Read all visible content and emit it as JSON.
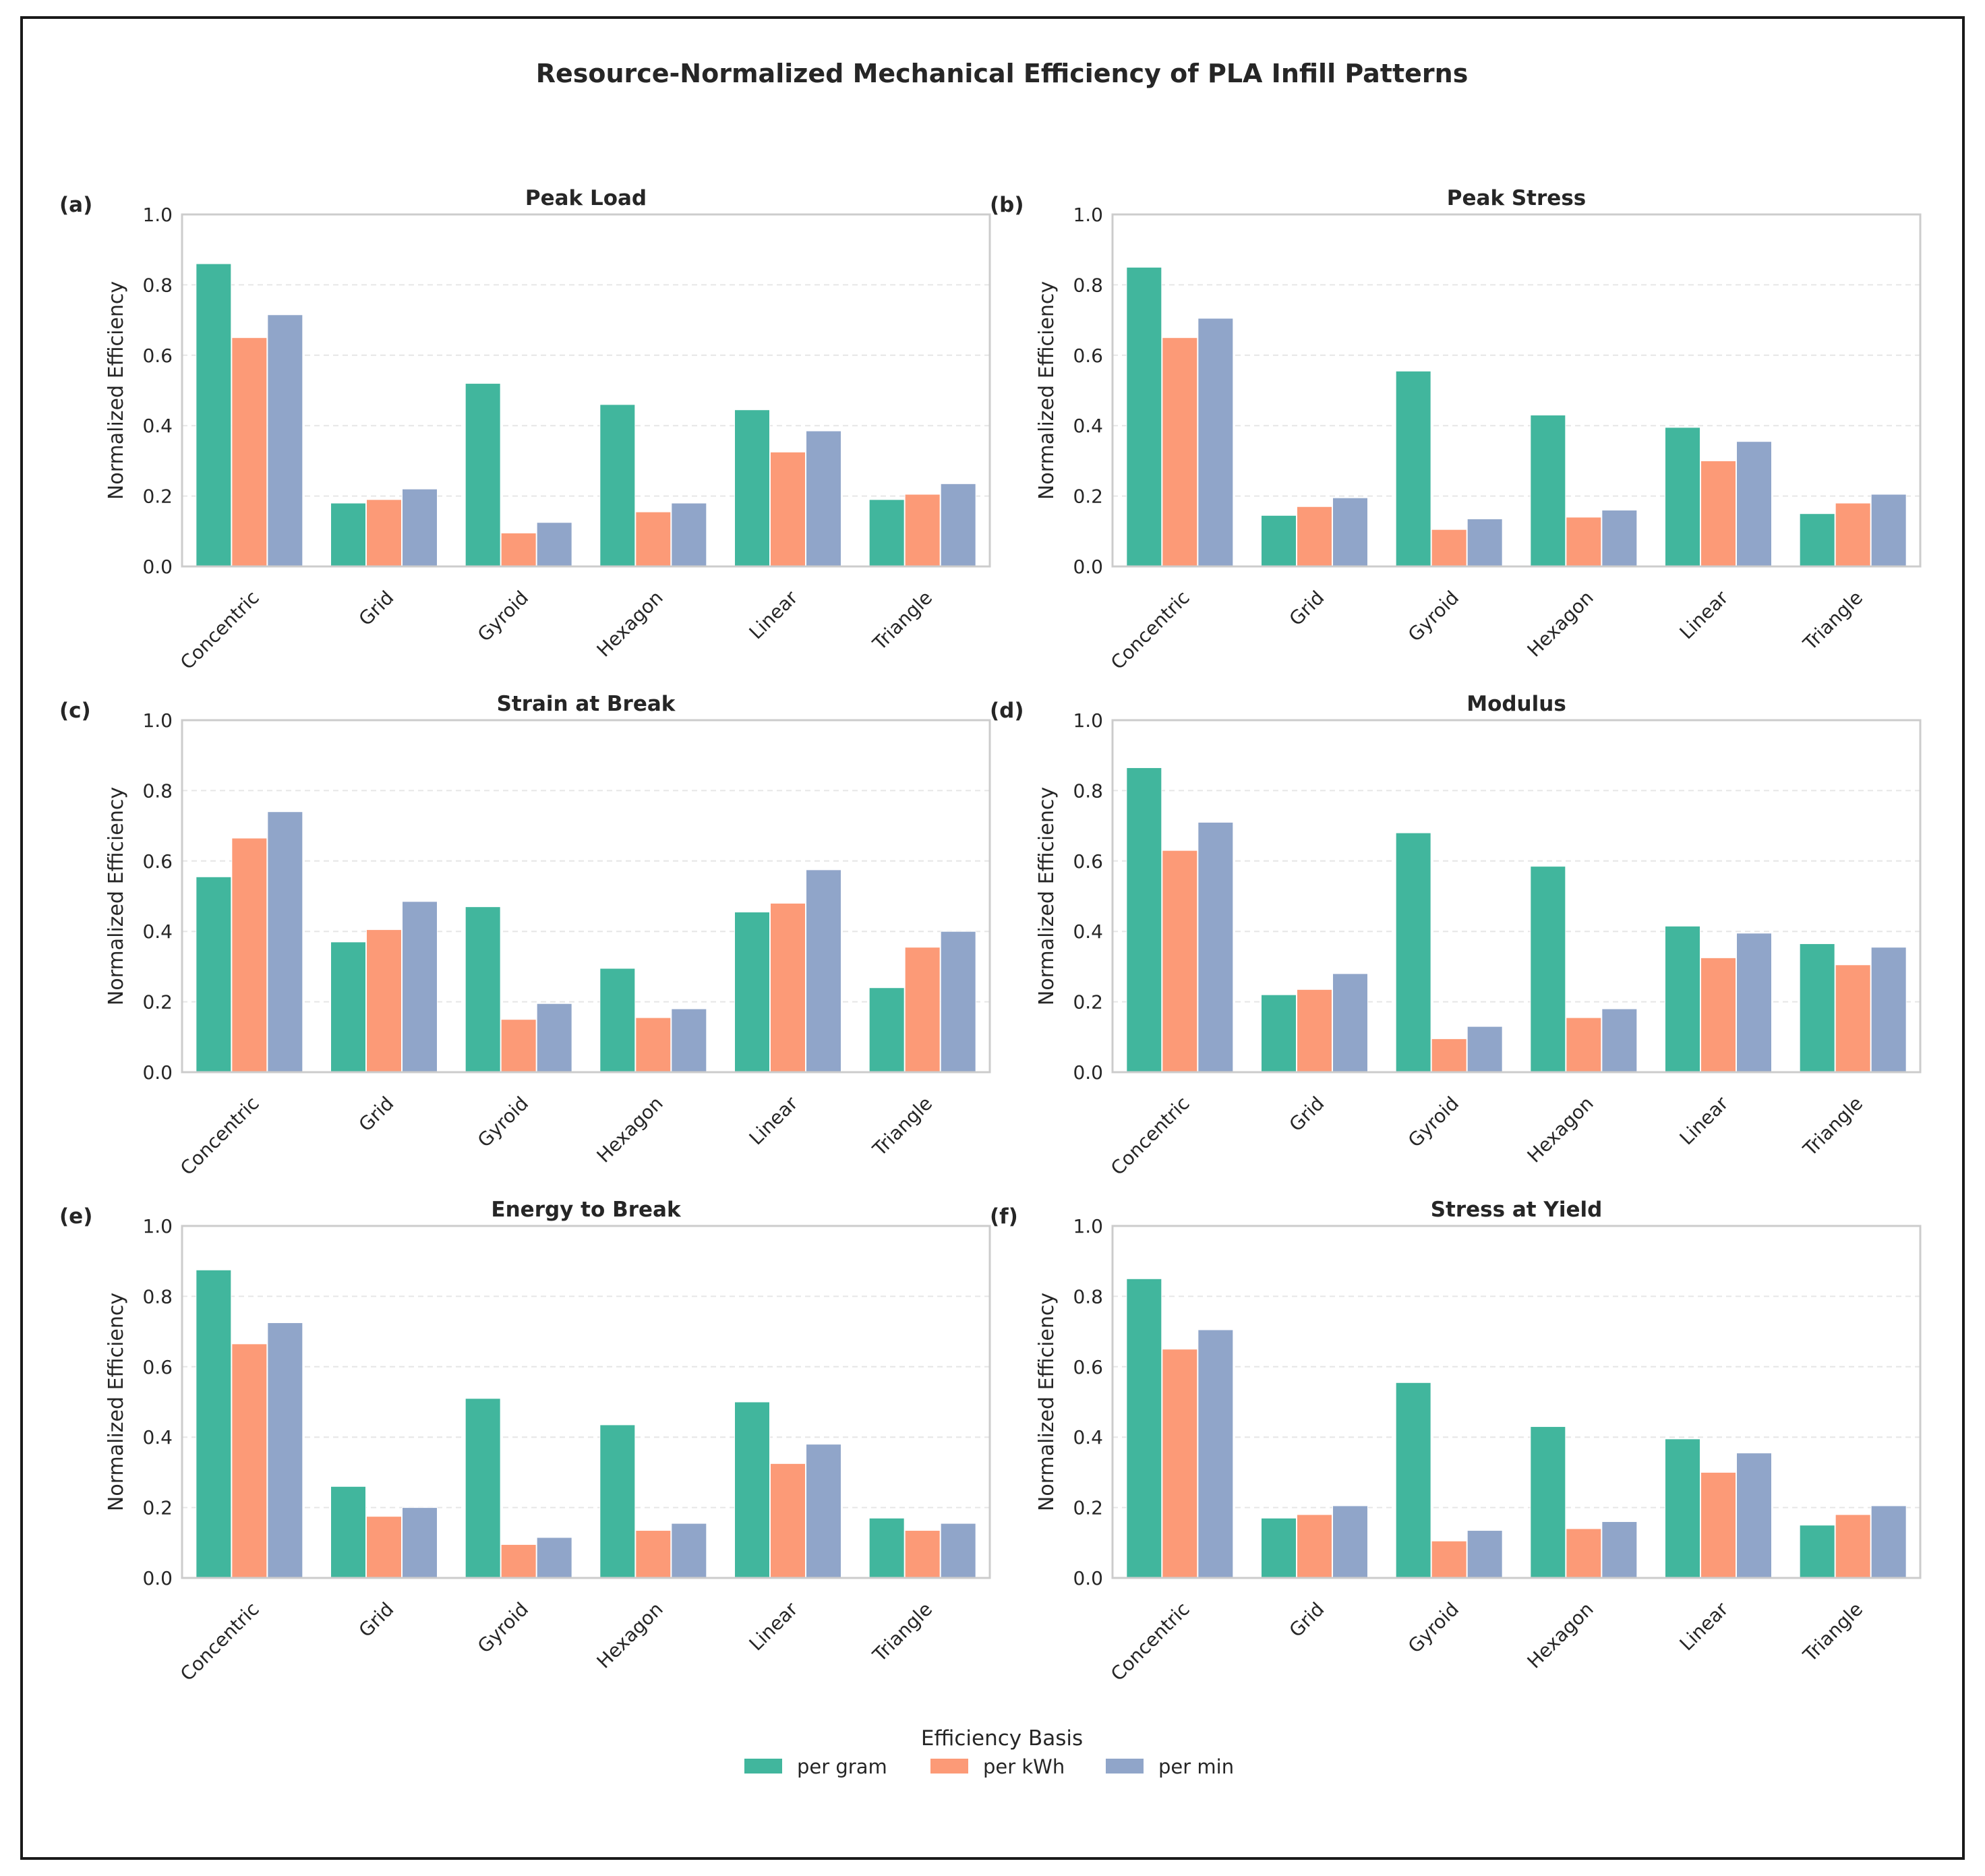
{
  "figure": {
    "title": "Resource-Normalized Mechanical Efficiency of PLA Infill Patterns",
    "legend_title": "Efficiency Basis",
    "legend_position": "bottom-center"
  },
  "colors": {
    "per gram": "#41b69d",
    "per kWh": "#fc9a77",
    "per min": "#90a5c9",
    "axis": "#cccccc",
    "grid": "#e6e6e6",
    "text": "#262626"
  },
  "chart_data": [
    {
      "type": "bar",
      "panel": "(a)",
      "title": "Peak Load",
      "xlabel": "",
      "ylabel": "Normalized Efficiency",
      "ylim": [
        0,
        1.0
      ],
      "yticks": [
        "0.0",
        "0.2",
        "0.4",
        "0.6",
        "0.8",
        "1.0"
      ],
      "grid": true,
      "categories": [
        "Concentric",
        "Grid",
        "Gyroid",
        "Hexagon",
        "Linear",
        "Triangle"
      ],
      "series": [
        {
          "name": "per gram",
          "values": [
            0.86,
            0.18,
            0.52,
            0.46,
            0.445,
            0.19
          ]
        },
        {
          "name": "per kWh",
          "values": [
            0.65,
            0.19,
            0.095,
            0.155,
            0.325,
            0.205
          ]
        },
        {
          "name": "per min",
          "values": [
            0.715,
            0.22,
            0.125,
            0.18,
            0.385,
            0.235
          ]
        }
      ]
    },
    {
      "type": "bar",
      "panel": "(b)",
      "title": "Peak Stress",
      "xlabel": "",
      "ylabel": "Normalized Efficiency",
      "ylim": [
        0,
        1.0
      ],
      "yticks": [
        "0.0",
        "0.2",
        "0.4",
        "0.6",
        "0.8",
        "1.0"
      ],
      "grid": true,
      "categories": [
        "Concentric",
        "Grid",
        "Gyroid",
        "Hexagon",
        "Linear",
        "Triangle"
      ],
      "series": [
        {
          "name": "per gram",
          "values": [
            0.85,
            0.145,
            0.555,
            0.43,
            0.395,
            0.15
          ]
        },
        {
          "name": "per kWh",
          "values": [
            0.65,
            0.17,
            0.105,
            0.14,
            0.3,
            0.18
          ]
        },
        {
          "name": "per min",
          "values": [
            0.705,
            0.195,
            0.135,
            0.16,
            0.355,
            0.205
          ]
        }
      ]
    },
    {
      "type": "bar",
      "panel": "(c)",
      "title": "Strain at Break",
      "xlabel": "",
      "ylabel": "Normalized Efficiency",
      "ylim": [
        0,
        1.0
      ],
      "yticks": [
        "0.0",
        "0.2",
        "0.4",
        "0.6",
        "0.8",
        "1.0"
      ],
      "grid": true,
      "categories": [
        "Concentric",
        "Grid",
        "Gyroid",
        "Hexagon",
        "Linear",
        "Triangle"
      ],
      "series": [
        {
          "name": "per gram",
          "values": [
            0.555,
            0.37,
            0.47,
            0.295,
            0.455,
            0.24
          ]
        },
        {
          "name": "per kWh",
          "values": [
            0.665,
            0.405,
            0.15,
            0.155,
            0.48,
            0.355
          ]
        },
        {
          "name": "per min",
          "values": [
            0.74,
            0.485,
            0.195,
            0.18,
            0.575,
            0.4
          ]
        }
      ]
    },
    {
      "type": "bar",
      "panel": "(d)",
      "title": "Modulus",
      "xlabel": "",
      "ylabel": "Normalized Efficiency",
      "ylim": [
        0,
        1.0
      ],
      "yticks": [
        "0.0",
        "0.2",
        "0.4",
        "0.6",
        "0.8",
        "1.0"
      ],
      "grid": true,
      "categories": [
        "Concentric",
        "Grid",
        "Gyroid",
        "Hexagon",
        "Linear",
        "Triangle"
      ],
      "series": [
        {
          "name": "per gram",
          "values": [
            0.865,
            0.22,
            0.68,
            0.585,
            0.415,
            0.365
          ]
        },
        {
          "name": "per kWh",
          "values": [
            0.63,
            0.235,
            0.095,
            0.155,
            0.325,
            0.305
          ]
        },
        {
          "name": "per min",
          "values": [
            0.71,
            0.28,
            0.13,
            0.18,
            0.395,
            0.355
          ]
        }
      ]
    },
    {
      "type": "bar",
      "panel": "(e)",
      "title": "Energy to Break",
      "xlabel": "",
      "ylabel": "Normalized Efficiency",
      "ylim": [
        0,
        1.0
      ],
      "yticks": [
        "0.0",
        "0.2",
        "0.4",
        "0.6",
        "0.8",
        "1.0"
      ],
      "grid": true,
      "categories": [
        "Concentric",
        "Grid",
        "Gyroid",
        "Hexagon",
        "Linear",
        "Triangle"
      ],
      "series": [
        {
          "name": "per gram",
          "values": [
            0.875,
            0.26,
            0.51,
            0.435,
            0.5,
            0.17
          ]
        },
        {
          "name": "per kWh",
          "values": [
            0.665,
            0.175,
            0.095,
            0.135,
            0.325,
            0.135
          ]
        },
        {
          "name": "per min",
          "values": [
            0.725,
            0.2,
            0.115,
            0.155,
            0.38,
            0.155
          ]
        }
      ]
    },
    {
      "type": "bar",
      "panel": "(f)",
      "title": "Stress at Yield",
      "xlabel": "",
      "ylabel": "Normalized Efficiency",
      "ylim": [
        0,
        1.0
      ],
      "yticks": [
        "0.0",
        "0.2",
        "0.4",
        "0.6",
        "0.8",
        "1.0"
      ],
      "grid": true,
      "categories": [
        "Concentric",
        "Grid",
        "Gyroid",
        "Hexagon",
        "Linear",
        "Triangle"
      ],
      "series": [
        {
          "name": "per gram",
          "values": [
            0.85,
            0.17,
            0.555,
            0.43,
            0.395,
            0.15
          ]
        },
        {
          "name": "per kWh",
          "values": [
            0.65,
            0.18,
            0.105,
            0.14,
            0.3,
            0.18
          ]
        },
        {
          "name": "per min",
          "values": [
            0.705,
            0.205,
            0.135,
            0.16,
            0.355,
            0.205
          ]
        }
      ]
    }
  ]
}
